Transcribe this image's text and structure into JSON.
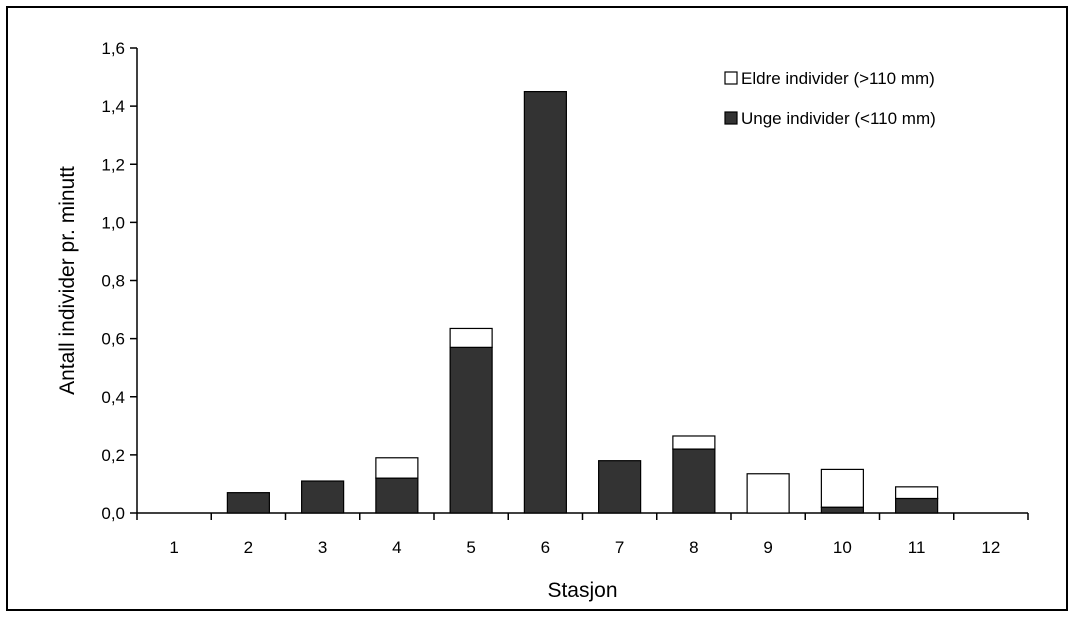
{
  "chart_data": {
    "type": "bar",
    "stacked": true,
    "title": "",
    "xlabel": "Stasjon",
    "ylabel": "Antall individer pr. minutt",
    "ylim": [
      0,
      1.6
    ],
    "y_ticks": [
      "0,0",
      "0,2",
      "0,4",
      "0,6",
      "0,8",
      "1,0",
      "1,2",
      "1,4",
      "1,6"
    ],
    "y_tick_values": [
      0,
      0.2,
      0.4,
      0.6,
      0.8,
      1.0,
      1.2,
      1.4,
      1.6
    ],
    "grid": false,
    "legend_position": "top-right",
    "categories": [
      "1",
      "2",
      "3",
      "4",
      "5",
      "6",
      "7",
      "8",
      "9",
      "10",
      "11",
      "12"
    ],
    "series": [
      {
        "name": "Unge individer (<110 mm)",
        "color": "#333333",
        "values": [
          0,
          0.07,
          0.11,
          0.12,
          0.57,
          1.45,
          0.18,
          0.22,
          0,
          0.02,
          0.05,
          0
        ]
      },
      {
        "name": "Eldre individer (>110 mm)",
        "color": "#ffffff",
        "values": [
          0,
          0,
          0,
          0.07,
          0.065,
          0,
          0,
          0.045,
          0.135,
          0.13,
          0.04,
          0
        ]
      }
    ],
    "legend_order": [
      1,
      0
    ]
  }
}
